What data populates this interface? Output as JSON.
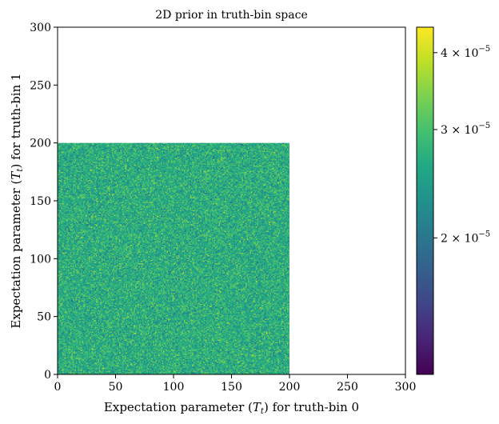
{
  "chart_data": {
    "type": "heatmap",
    "title": "2D prior in truth-bin space",
    "xlabel": "Expectation parameter (T_t) for truth-bin 0",
    "ylabel": "Expectation parameter (T_t) for truth-bin 1",
    "xlim": [
      0,
      300
    ],
    "ylim": [
      0,
      300
    ],
    "x_ticks": [
      "0",
      "50",
      "100",
      "150",
      "200",
      "250",
      "300"
    ],
    "y_ticks": [
      "0",
      "50",
      "100",
      "150",
      "200",
      "250",
      "300"
    ],
    "filled_region": {
      "x": [
        0,
        200
      ],
      "y": [
        0,
        200
      ]
    },
    "distribution": "approximately uniform noise over the filled region",
    "grid": false,
    "colorbar": {
      "scale": "log",
      "colormap": "viridis",
      "range": [
        1.2e-05,
        4.4e-05
      ],
      "ticks": [
        {
          "value": 2e-05,
          "mantissa": "2",
          "exponent": "−5"
        },
        {
          "value": 3e-05,
          "mantissa": "3",
          "exponent": "−5"
        },
        {
          "value": 4e-05,
          "mantissa": "4",
          "exponent": "−5"
        }
      ]
    }
  }
}
